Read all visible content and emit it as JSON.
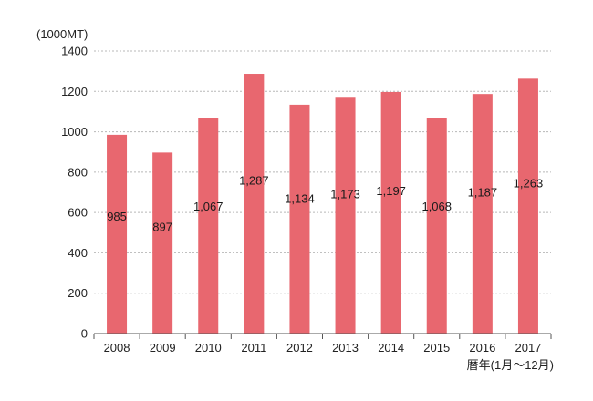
{
  "chart_data": {
    "type": "bar",
    "title": "",
    "ylabel": "(1000MT)",
    "xlabel": "暦年(1月〜12月)",
    "categories": [
      "2008",
      "2009",
      "2010",
      "2011",
      "2012",
      "2013",
      "2014",
      "2015",
      "2016",
      "2017"
    ],
    "values": [
      985,
      897,
      1067,
      1287,
      1134,
      1173,
      1197,
      1068,
      1187,
      1263
    ],
    "value_labels": [
      "985",
      "897",
      "1,067",
      "1,287",
      "1,134",
      "1,173",
      "1,197",
      "1,068",
      "1,187",
      "1,263"
    ],
    "ylim": [
      0,
      1400
    ],
    "yticks": [
      "0",
      "200",
      "400",
      "600",
      "800",
      "1000",
      "1200",
      "1400"
    ],
    "grid": true,
    "legend": "none",
    "bar_color": "#e8676f"
  }
}
